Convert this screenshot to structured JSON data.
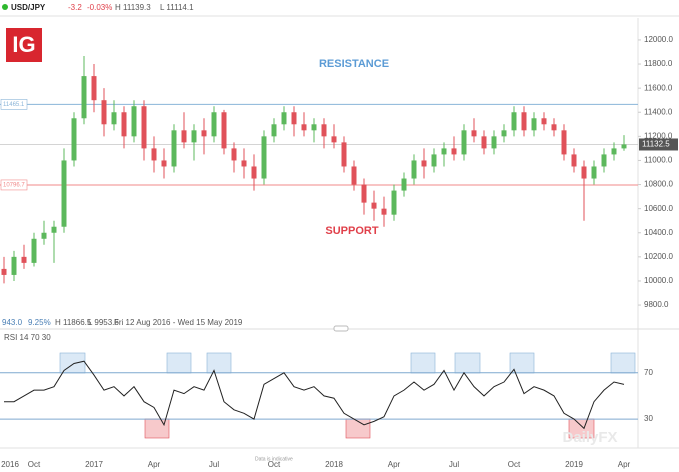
{
  "chart_data": {
    "type": "candlestick",
    "header": {
      "symbol": "USD/JPY",
      "change": "-3.2",
      "change_pct": "-0.03%",
      "high": "H 11139.3",
      "low": "L 11114.1"
    },
    "logo": "IG",
    "info_bar": [
      "943.0",
      "9.25%",
      "H 11866.5",
      "L 9953.6",
      "Fri 12 Aug 2016 - Wed 15 May 2019"
    ],
    "categories": [
      "2016",
      null,
      null,
      "Oct",
      null,
      null,
      null,
      null,
      null,
      "2017",
      null,
      null,
      null,
      null,
      null,
      "Apr",
      null,
      null,
      null,
      null,
      null,
      "Jul",
      null,
      null,
      null,
      null,
      null,
      "Oct",
      null,
      null,
      null,
      null,
      null,
      "2018",
      null,
      null,
      null,
      null,
      null,
      "Apr",
      null,
      null,
      null,
      null,
      null,
      "Jul",
      null,
      null,
      null,
      null,
      null,
      "Oct",
      null,
      null,
      null,
      null,
      null,
      "2019",
      null,
      null,
      null,
      null,
      "Apr"
    ],
    "open": [
      10100,
      10050,
      10200,
      10150,
      10350,
      10400,
      10450,
      11000,
      11350,
      11700,
      11500,
      11300,
      11400,
      11200,
      11450,
      11100,
      11000,
      10950,
      11250,
      11150,
      11250,
      11200,
      11400,
      11100,
      11000,
      10950,
      10850,
      11200,
      11300,
      11400,
      11300,
      11250,
      11300,
      11200,
      11150,
      10950,
      10800,
      10650,
      10600,
      10550,
      10750,
      10850,
      11000,
      10950,
      11050,
      11100,
      11050,
      11250,
      11200,
      11100,
      11200,
      11250,
      11400,
      11250,
      11350,
      11300,
      11250,
      11050,
      10950,
      10850,
      10950,
      11050,
      11100
    ],
    "high": [
      10200,
      10250,
      10300,
      10400,
      10500,
      10500,
      11100,
      11400,
      11866.5,
      11800,
      11600,
      11500,
      11450,
      11500,
      11500,
      11200,
      11100,
      11300,
      11400,
      11300,
      11350,
      11450,
      11420,
      11150,
      11100,
      11050,
      11250,
      11350,
      11450,
      11450,
      11400,
      11350,
      11350,
      11300,
      11200,
      11000,
      10850,
      10750,
      10700,
      10800,
      10900,
      11050,
      11100,
      11100,
      11150,
      11200,
      11300,
      11350,
      11250,
      11250,
      11300,
      11450,
      11450,
      11400,
      11400,
      11350,
      11300,
      11100,
      11000,
      11000,
      11100,
      11150,
      11210
    ],
    "low": [
      9980,
      10000,
      10100,
      10120,
      10300,
      10150,
      10400,
      10950,
      11300,
      11400,
      11200,
      11250,
      11100,
      11150,
      11000,
      10900,
      10850,
      10900,
      11100,
      11000,
      11050,
      11150,
      11050,
      10900,
      10850,
      10750,
      10800,
      11150,
      11250,
      11200,
      11200,
      11150,
      11100,
      11100,
      10900,
      10750,
      10550,
      10500,
      10450,
      10500,
      10700,
      10800,
      10850,
      10900,
      10950,
      11000,
      11000,
      11150,
      11050,
      11050,
      11150,
      11200,
      11200,
      11200,
      11250,
      11200,
      11000,
      10900,
      10500,
      10800,
      10900,
      11000,
      11080
    ],
    "close": [
      10050,
      10200,
      10150,
      10350,
      10400,
      10450,
      11000,
      11350,
      11700,
      11500,
      11300,
      11400,
      11200,
      11450,
      11100,
      11000,
      10950,
      11250,
      11150,
      11250,
      11200,
      11400,
      11100,
      11000,
      10950,
      10850,
      11200,
      11300,
      11400,
      11300,
      11250,
      11300,
      11200,
      11150,
      10950,
      10800,
      10650,
      10600,
      10550,
      10750,
      10850,
      11000,
      10950,
      11050,
      11100,
      11050,
      11250,
      11200,
      11100,
      11200,
      11250,
      11400,
      11250,
      11350,
      11300,
      11250,
      11050,
      10950,
      10850,
      10950,
      11050,
      11100,
      11132.5
    ],
    "up_color": "#5cb85c",
    "down_color": "#e0525a",
    "ylim": [
      9676,
      12124
    ],
    "yticks": [
      {
        "value": 9800,
        "label": "9800.0"
      },
      {
        "value": 10000,
        "label": "10000.0"
      },
      {
        "value": 10200,
        "label": "10200.0"
      },
      {
        "value": 10400,
        "label": "10400.0"
      },
      {
        "value": 10600,
        "label": "10600.0"
      },
      {
        "value": 10800,
        "label": "10800.0"
      },
      {
        "value": 11000,
        "label": "11000.0"
      },
      {
        "value": 11200,
        "label": "11200.0"
      },
      {
        "value": 11400,
        "label": "11400.0"
      },
      {
        "value": 11600,
        "label": "11600.0"
      },
      {
        "value": 11800,
        "label": "11800.0"
      },
      {
        "value": 12000,
        "label": "12000.0"
      }
    ],
    "levels": [
      {
        "value": 11465.1,
        "color": "#8ab4d8"
      },
      {
        "value": 10796.7,
        "color": "#f08a8a"
      }
    ],
    "annotations": [
      {
        "text": "RESISTANCE",
        "color": "#5b9bd5"
      },
      {
        "text": "SUPPORT",
        "color": "#e0404a"
      }
    ],
    "indicator": {
      "type": "line",
      "label": "RSI 14 70 30",
      "color": "#222222",
      "values": [
        45,
        45,
        50,
        55,
        55,
        58,
        72,
        78,
        80,
        68,
        55,
        58,
        50,
        58,
        45,
        40,
        25,
        55,
        52,
        58,
        55,
        72,
        45,
        38,
        35,
        30,
        60,
        65,
        70,
        58,
        55,
        58,
        50,
        48,
        35,
        30,
        25,
        28,
        32,
        50,
        55,
        62,
        55,
        60,
        72,
        55,
        70,
        58,
        50,
        58,
        62,
        73,
        52,
        58,
        55,
        50,
        35,
        30,
        22,
        45,
        55,
        62,
        60
      ],
      "ylim": [
        5,
        94
      ],
      "yticks": [
        30,
        70
      ],
      "line_color": "#7fa9cf"
    },
    "note": "Data is indicative",
    "watermark": "DailyFX"
  }
}
